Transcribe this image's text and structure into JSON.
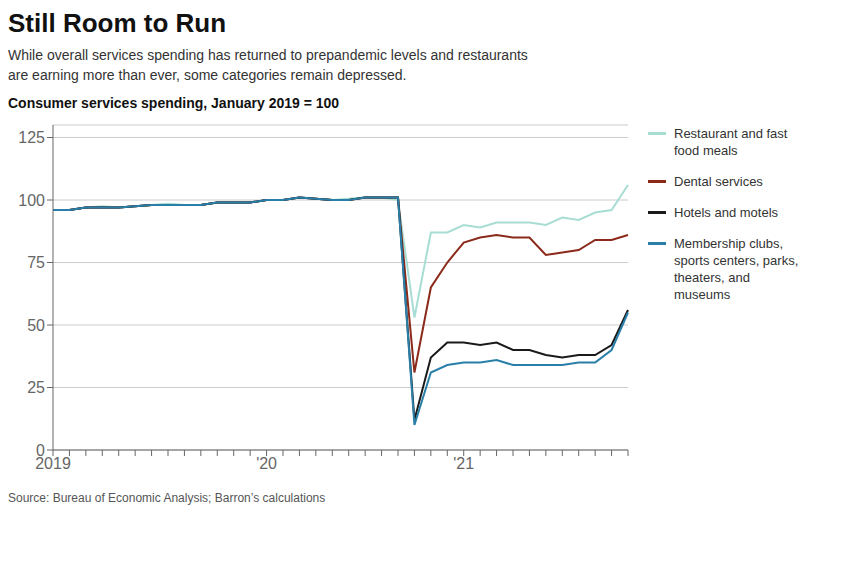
{
  "chart_data": {
    "type": "line",
    "title": "Still Room to Run",
    "subtitle": "While overall services spending has returned to prepandemic levels and restaurants\nare earning more than ever, some categories remain depressed.",
    "y_label": "Consumer services spending, January 2019 = 100",
    "annotations": [
      "Source: Bureau of Economic Analysis; Barron’s calculations"
    ],
    "categories": [
      "2019",
      null,
      null,
      null,
      null,
      null,
      null,
      null,
      null,
      null,
      null,
      null,
      null,
      "'20",
      null,
      null,
      null,
      null,
      null,
      null,
      null,
      null,
      null,
      null,
      null,
      "'21",
      null,
      null,
      null,
      null,
      null,
      null,
      null,
      null,
      null,
      null
    ],
    "ylim": [
      0,
      130
    ],
    "yticks": [
      0,
      25,
      50,
      75,
      100,
      125
    ],
    "grid": true,
    "legend": "right",
    "series": [
      {
        "name": "Restaurant and fast\nfood meals",
        "color": "#a8ddd4",
        "values": [
          96,
          96,
          97,
          97.5,
          97,
          97.5,
          98,
          98.5,
          98,
          98,
          99,
          99,
          99,
          100,
          100,
          101,
          100.5,
          100,
          100.5,
          101,
          101,
          100,
          53,
          87,
          87,
          90,
          89,
          91,
          91,
          91,
          90,
          93,
          92,
          95,
          96,
          106
        ]
      },
      {
        "name": "Dental services",
        "color": "#8b2a1a",
        "values": [
          96,
          96,
          97,
          97,
          97,
          97.5,
          98,
          98,
          98,
          98,
          99,
          99,
          99,
          100,
          100,
          101,
          100.5,
          100,
          100,
          101,
          101,
          101,
          31,
          65,
          75,
          83,
          85,
          86,
          85,
          85,
          78,
          79,
          80,
          84,
          84,
          86
        ]
      },
      {
        "name": "Hotels and motels",
        "color": "#1a1a1a",
        "values": [
          96,
          96,
          97,
          97,
          97,
          97.5,
          98,
          98,
          98,
          98,
          99,
          99,
          99,
          100,
          100,
          101,
          100.5,
          100,
          100,
          101,
          101,
          101,
          12,
          37,
          43,
          43,
          42,
          43,
          40,
          40,
          38,
          37,
          38,
          38,
          42,
          56
        ]
      },
      {
        "name": "Membership clubs,\nsports centers, parks,\ntheaters, and\nmuseums",
        "color": "#2a7fa8",
        "values": [
          96,
          96,
          97,
          97,
          97,
          97.5,
          98,
          98,
          98,
          98,
          99,
          99,
          99,
          100,
          100,
          101,
          100.5,
          100,
          100,
          101,
          101,
          101,
          10,
          31,
          34,
          35,
          35,
          36,
          34,
          34,
          34,
          34,
          35,
          35,
          40,
          55
        ]
      }
    ]
  }
}
